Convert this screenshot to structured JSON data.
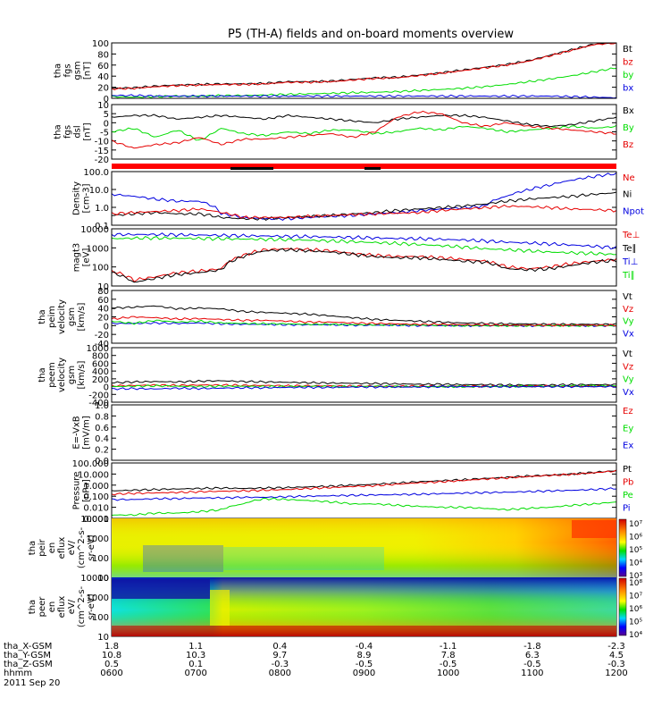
{
  "title": "P5 (TH-A) fields and on-board moments overview",
  "colors": {
    "black": "#000000",
    "red": "#e60000",
    "green": "#00dd00",
    "blue": "#0000e0",
    "flag": "#ff0000"
  },
  "chart_data": [
    {
      "type": "line",
      "ylabel": [
        "tha",
        "fgs",
        "gsm",
        "[nT]"
      ],
      "yticks": [
        "100",
        "80",
        "60",
        "40",
        "20",
        "0"
      ],
      "legend": [
        {
          "label": "Bt",
          "color": "#000000"
        },
        {
          "label": "bz",
          "color": "#e60000"
        },
        {
          "label": "by",
          "color": "#00dd00"
        },
        {
          "label": "bx",
          "color": "#0000e0"
        }
      ],
      "series": [
        {
          "name": "Bt",
          "color": "#000000",
          "values": [
            18,
            19,
            22,
            24,
            25,
            26,
            26,
            27,
            30,
            30,
            31,
            34,
            37,
            38,
            42,
            46,
            51,
            56,
            61,
            68,
            78,
            88,
            98,
            100
          ]
        },
        {
          "name": "bz",
          "color": "#e60000",
          "values": [
            17,
            18,
            21,
            23,
            24,
            25,
            25,
            26,
            29,
            29,
            30,
            33,
            36,
            37,
            41,
            45,
            50,
            55,
            60,
            67,
            77,
            87,
            97,
            100
          ]
        },
        {
          "name": "by",
          "color": "#00dd00",
          "values": [
            3,
            2,
            3,
            4,
            4,
            5,
            5,
            6,
            7,
            8,
            9,
            10,
            11,
            12,
            14,
            16,
            18,
            21,
            25,
            30,
            35,
            41,
            48,
            55
          ]
        },
        {
          "name": "bx",
          "color": "#0000e0",
          "values": [
            5,
            5,
            4,
            4,
            4,
            4,
            4,
            4,
            4,
            4,
            4,
            4,
            4,
            4,
            4,
            4,
            4,
            4,
            4,
            4,
            4,
            3,
            2,
            1
          ]
        }
      ]
    },
    {
      "type": "line",
      "ylabel": [
        "tha",
        "fgs",
        "dsl",
        "[nT]"
      ],
      "yticks": [
        "10",
        "5",
        "0",
        "-5",
        "-10",
        "-15",
        "-20"
      ],
      "legend": [
        {
          "label": "Bx",
          "color": "#000000"
        },
        {
          "label": "By",
          "color": "#00dd00"
        },
        {
          "label": "Bz",
          "color": "#e60000"
        }
      ],
      "series": [
        {
          "name": "Bx",
          "color": "#000000",
          "values": [
            3,
            4,
            4,
            2,
            3,
            4,
            3,
            2,
            4,
            3,
            2,
            1,
            0,
            2,
            3,
            4,
            4,
            3,
            1,
            -1,
            -2,
            -1,
            1,
            3
          ]
        },
        {
          "name": "By",
          "color": "#00dd00",
          "values": [
            -5,
            -3,
            -8,
            -4,
            -10,
            -3,
            -6,
            -7,
            -5,
            -6,
            -4,
            -4,
            -6,
            -5,
            -3,
            -4,
            -2,
            -3,
            -5,
            -4,
            -3,
            -2,
            -3,
            -2
          ]
        },
        {
          "name": "Bz",
          "color": "#e60000",
          "values": [
            -10,
            -14,
            -12,
            -11,
            -8,
            -12,
            -9,
            -9,
            -8,
            -7,
            -6,
            -8,
            -5,
            3,
            6,
            5,
            0,
            -2,
            0,
            -2,
            -3,
            -4,
            -5,
            -6
          ]
        }
      ]
    },
    {
      "type": "line",
      "ylabel": [
        "Density",
        "[cm-3]"
      ],
      "yticks": [
        "100.0",
        "10.0",
        "1.0",
        "0.1"
      ],
      "legend": [
        {
          "label": "Ne",
          "color": "#e60000"
        },
        {
          "label": "Ni",
          "color": "#000000"
        },
        {
          "label": "Npot",
          "color": "#0000e0"
        }
      ],
      "series": [
        {
          "name": "Npot",
          "color": "#0000e0",
          "values": [
            8,
            6,
            4,
            3,
            3,
            0.5,
            0.3,
            0.25,
            0.25,
            0.3,
            0.35,
            0.4,
            0.5,
            0.6,
            0.8,
            1,
            1.2,
            1.5,
            6,
            15,
            30,
            60,
            100,
            150
          ]
        },
        {
          "name": "Ni",
          "color": "#000000",
          "values": [
            0.4,
            0.5,
            0.6,
            0.5,
            0.5,
            0.3,
            0.25,
            0.25,
            0.3,
            0.35,
            0.4,
            0.5,
            0.6,
            0.8,
            1,
            1.2,
            1.5,
            2,
            3,
            4,
            5,
            6,
            8,
            10
          ]
        },
        {
          "name": "Ne",
          "color": "#e60000",
          "values": [
            0.5,
            0.6,
            0.7,
            0.8,
            1,
            0.6,
            0.3,
            0.3,
            0.3,
            0.35,
            0.4,
            0.45,
            0.5,
            0.55,
            0.6,
            0.8,
            1,
            1.2,
            1.5,
            1.4,
            1.2,
            1,
            0.9,
            0.8
          ]
        }
      ]
    },
    {
      "type": "line",
      "ylabel": [
        "magt3",
        "[eV]"
      ],
      "yticks": [
        "10000",
        "1000",
        "100",
        "10"
      ],
      "legend": [
        {
          "label": "Te⊥",
          "color": "#e60000"
        },
        {
          "label": "Te∥",
          "color": "#000000"
        },
        {
          "label": "Ti⊥",
          "color": "#0000e0"
        },
        {
          "label": "Ti∥",
          "color": "#00dd00"
        }
      ],
      "series": [
        {
          "name": "Ti⊥",
          "color": "#0000e0",
          "values": [
            5000,
            5000,
            5000,
            4800,
            4700,
            4500,
            4300,
            4200,
            4000,
            3900,
            3700,
            3500,
            3300,
            3100,
            3000,
            2800,
            2600,
            2300,
            2000,
            1800,
            1600,
            1400,
            1200,
            1000
          ]
        },
        {
          "name": "Ti∥",
          "color": "#00dd00",
          "values": [
            3000,
            3200,
            3300,
            3200,
            3100,
            3000,
            2900,
            2800,
            2700,
            2500,
            2300,
            2100,
            1900,
            1700,
            1500,
            1300,
            1100,
            900,
            800,
            700,
            600,
            550,
            500,
            450
          ]
        },
        {
          "name": "Te⊥",
          "color": "#e60000",
          "values": [
            60,
            20,
            30,
            50,
            60,
            80,
            400,
            800,
            900,
            800,
            700,
            500,
            400,
            350,
            350,
            300,
            250,
            200,
            100,
            80,
            100,
            150,
            200,
            250
          ]
        },
        {
          "name": "Te∥",
          "color": "#000000",
          "values": [
            50,
            15,
            25,
            40,
            50,
            70,
            350,
            700,
            800,
            700,
            600,
            450,
            350,
            300,
            300,
            250,
            200,
            180,
            80,
            70,
            80,
            120,
            180,
            220
          ]
        }
      ]
    },
    {
      "type": "line",
      "ylabel": [
        "tha",
        "peim",
        "velocity",
        "gsm",
        "[km/s]"
      ],
      "yticks": [
        "80",
        "60",
        "40",
        "20",
        "0",
        "-20",
        "-40"
      ],
      "legend": [
        {
          "label": "Vt",
          "color": "#000000"
        },
        {
          "label": "Vz",
          "color": "#e60000"
        },
        {
          "label": "Vy",
          "color": "#00dd00"
        },
        {
          "label": "Vx",
          "color": "#0000e0"
        }
      ],
      "series": [
        {
          "name": "Vt",
          "color": "#000000",
          "values": [
            40,
            42,
            45,
            38,
            40,
            38,
            32,
            30,
            28,
            26,
            22,
            18,
            14,
            12,
            10,
            8,
            6,
            5,
            4,
            4,
            3,
            3,
            3,
            3
          ]
        },
        {
          "name": "Vx",
          "color": "#0000e0",
          "values": [
            5,
            5,
            6,
            5,
            6,
            4,
            3,
            3,
            2,
            2,
            2,
            1,
            1,
            1,
            0,
            0,
            0,
            0,
            0,
            0,
            0,
            0,
            0,
            0
          ]
        },
        {
          "name": "Vy",
          "color": "#00dd00",
          "values": [
            10,
            5,
            12,
            8,
            10,
            6,
            5,
            4,
            4,
            3,
            3,
            2,
            2,
            2,
            1,
            1,
            0,
            0,
            0,
            0,
            0,
            0,
            0,
            0
          ]
        },
        {
          "name": "Vz",
          "color": "#e60000",
          "values": [
            15,
            20,
            18,
            15,
            16,
            14,
            12,
            12,
            10,
            8,
            8,
            6,
            5,
            4,
            3,
            3,
            2,
            2,
            1,
            1,
            1,
            1,
            1,
            1
          ]
        }
      ]
    },
    {
      "type": "line",
      "ylabel": [
        "tha",
        "peem",
        "velocity",
        "gsm",
        "[km/s]"
      ],
      "yticks": [
        "1000",
        "800",
        "600",
        "400",
        "200",
        "0",
        "-200",
        "-400"
      ],
      "legend": [
        {
          "label": "Vt",
          "color": "#000000"
        },
        {
          "label": "Vz",
          "color": "#e60000"
        },
        {
          "label": "Vy",
          "color": "#00dd00"
        },
        {
          "label": "Vx",
          "color": "#0000e0"
        }
      ],
      "series": [
        {
          "name": "Vt",
          "color": "#000000",
          "values": [
            100,
            120,
            130,
            120,
            140,
            150,
            130,
            120,
            110,
            100,
            90,
            85,
            80,
            70,
            60,
            60,
            50,
            50,
            40,
            40,
            40,
            50,
            50,
            50
          ]
        },
        {
          "name": "Vz",
          "color": "#e60000",
          "values": [
            20,
            30,
            40,
            30,
            40,
            40,
            30,
            30,
            20,
            20,
            20,
            10,
            10,
            10,
            10,
            10,
            10,
            10,
            10,
            10,
            10,
            10,
            10,
            10
          ]
        },
        {
          "name": "Vy",
          "color": "#00dd00",
          "values": [
            0,
            10,
            20,
            10,
            0,
            10,
            10,
            0,
            0,
            10,
            0,
            0,
            10,
            0,
            0,
            0,
            0,
            0,
            10,
            10,
            10,
            20,
            20,
            20
          ]
        },
        {
          "name": "Vx",
          "color": "#0000e0",
          "values": [
            -60,
            -50,
            -60,
            -40,
            -50,
            -40,
            -30,
            -30,
            -20,
            -20,
            -20,
            -10,
            -10,
            -10,
            -10,
            0,
            0,
            0,
            0,
            0,
            0,
            0,
            0,
            0
          ]
        }
      ]
    },
    {
      "type": "line",
      "ylabel": [
        "E=-VxB",
        "[mV/m]"
      ],
      "yticks": [
        "1.0",
        "0.8",
        "0.6",
        "0.4",
        "0.2",
        "0.0"
      ],
      "legend": [
        {
          "label": "Ez",
          "color": "#e60000"
        },
        {
          "label": "Ey",
          "color": "#00dd00"
        },
        {
          "label": "Ex",
          "color": "#0000e0"
        }
      ],
      "series": []
    },
    {
      "type": "line",
      "ylabel": [
        "Pressure",
        "[nPa]"
      ],
      "yticks": [
        "100.000",
        "10.000",
        "1.000",
        "0.100",
        "0.010",
        "0.001"
      ],
      "legend": [
        {
          "label": "Pt",
          "color": "#000000"
        },
        {
          "label": "Pb",
          "color": "#e60000"
        },
        {
          "label": "Pe",
          "color": "#00dd00"
        },
        {
          "label": "Pi",
          "color": "#0000e0"
        }
      ],
      "series": [
        {
          "name": "Pt",
          "color": "#000000",
          "values": [
            0.3,
            0.35,
            0.4,
            0.45,
            0.5,
            0.55,
            0.5,
            0.55,
            0.6,
            0.7,
            0.8,
            1,
            1.2,
            1.5,
            2,
            2.5,
            3,
            4,
            5,
            6.5,
            8,
            10,
            14,
            20
          ]
        },
        {
          "name": "Pb",
          "color": "#e60000",
          "values": [
            0.15,
            0.18,
            0.2,
            0.22,
            0.25,
            0.28,
            0.3,
            0.35,
            0.4,
            0.5,
            0.6,
            0.75,
            0.9,
            1.2,
            1.6,
            2,
            2.6,
            3.5,
            4.5,
            6,
            7.5,
            9.5,
            13,
            19
          ]
        },
        {
          "name": "Pi",
          "color": "#0000e0",
          "values": [
            0.05,
            0.05,
            0.06,
            0.06,
            0.07,
            0.07,
            0.08,
            0.08,
            0.09,
            0.1,
            0.11,
            0.12,
            0.13,
            0.14,
            0.15,
            0.17,
            0.19,
            0.21,
            0.23,
            0.26,
            0.3,
            0.34,
            0.4,
            0.5
          ]
        },
        {
          "name": "Pe",
          "color": "#00dd00",
          "values": [
            0.002,
            0.002,
            0.003,
            0.003,
            0.004,
            0.006,
            0.02,
            0.06,
            0.05,
            0.04,
            0.03,
            0.02,
            0.02,
            0.015,
            0.012,
            0.01,
            0.01,
            0.008,
            0.006,
            0.008,
            0.01,
            0.015,
            0.02,
            0.03
          ]
        }
      ]
    },
    {
      "type": "heatmap",
      "ylabel": [
        "tha",
        "peir",
        "en",
        "eflux",
        "eV/",
        "(cm^2-s-",
        "sr-eV)"
      ],
      "yticks": [
        "10000",
        "1000",
        "100",
        "10"
      ],
      "colorbar": [
        "10⁷",
        "10⁶",
        "10⁵",
        "10⁴",
        "10³"
      ]
    },
    {
      "type": "heatmap",
      "ylabel": [
        "tha",
        "peer",
        "en",
        "eflux",
        "eV/",
        "(cm^2-s-",
        "sr-eV)"
      ],
      "yticks": [
        "10000",
        "1000",
        "100",
        "10"
      ],
      "colorbar": [
        "10⁸",
        "10⁷",
        "10⁶",
        "10⁵",
        "10⁴"
      ]
    }
  ],
  "ephemeris": {
    "rows": [
      {
        "label": "tha_X-GSM",
        "values": [
          "1.8",
          "1.1",
          "0.4",
          "-0.4",
          "-1.1",
          "-1.8",
          "-2.3"
        ]
      },
      {
        "label": "tha_Y-GSM",
        "values": [
          "10.8",
          "10.3",
          "9.7",
          "8.9",
          "7.8",
          "6.3",
          "4.5"
        ]
      },
      {
        "label": "tha_Z-GSM",
        "values": [
          "0.5",
          "0.1",
          "-0.3",
          "-0.5",
          "-0.5",
          "-0.5",
          "-0.3"
        ]
      },
      {
        "label": "hhmm",
        "values": [
          "0600",
          "0700",
          "0800",
          "0900",
          "1000",
          "1100",
          "1200"
        ]
      }
    ],
    "date": "2011 Sep 20"
  }
}
